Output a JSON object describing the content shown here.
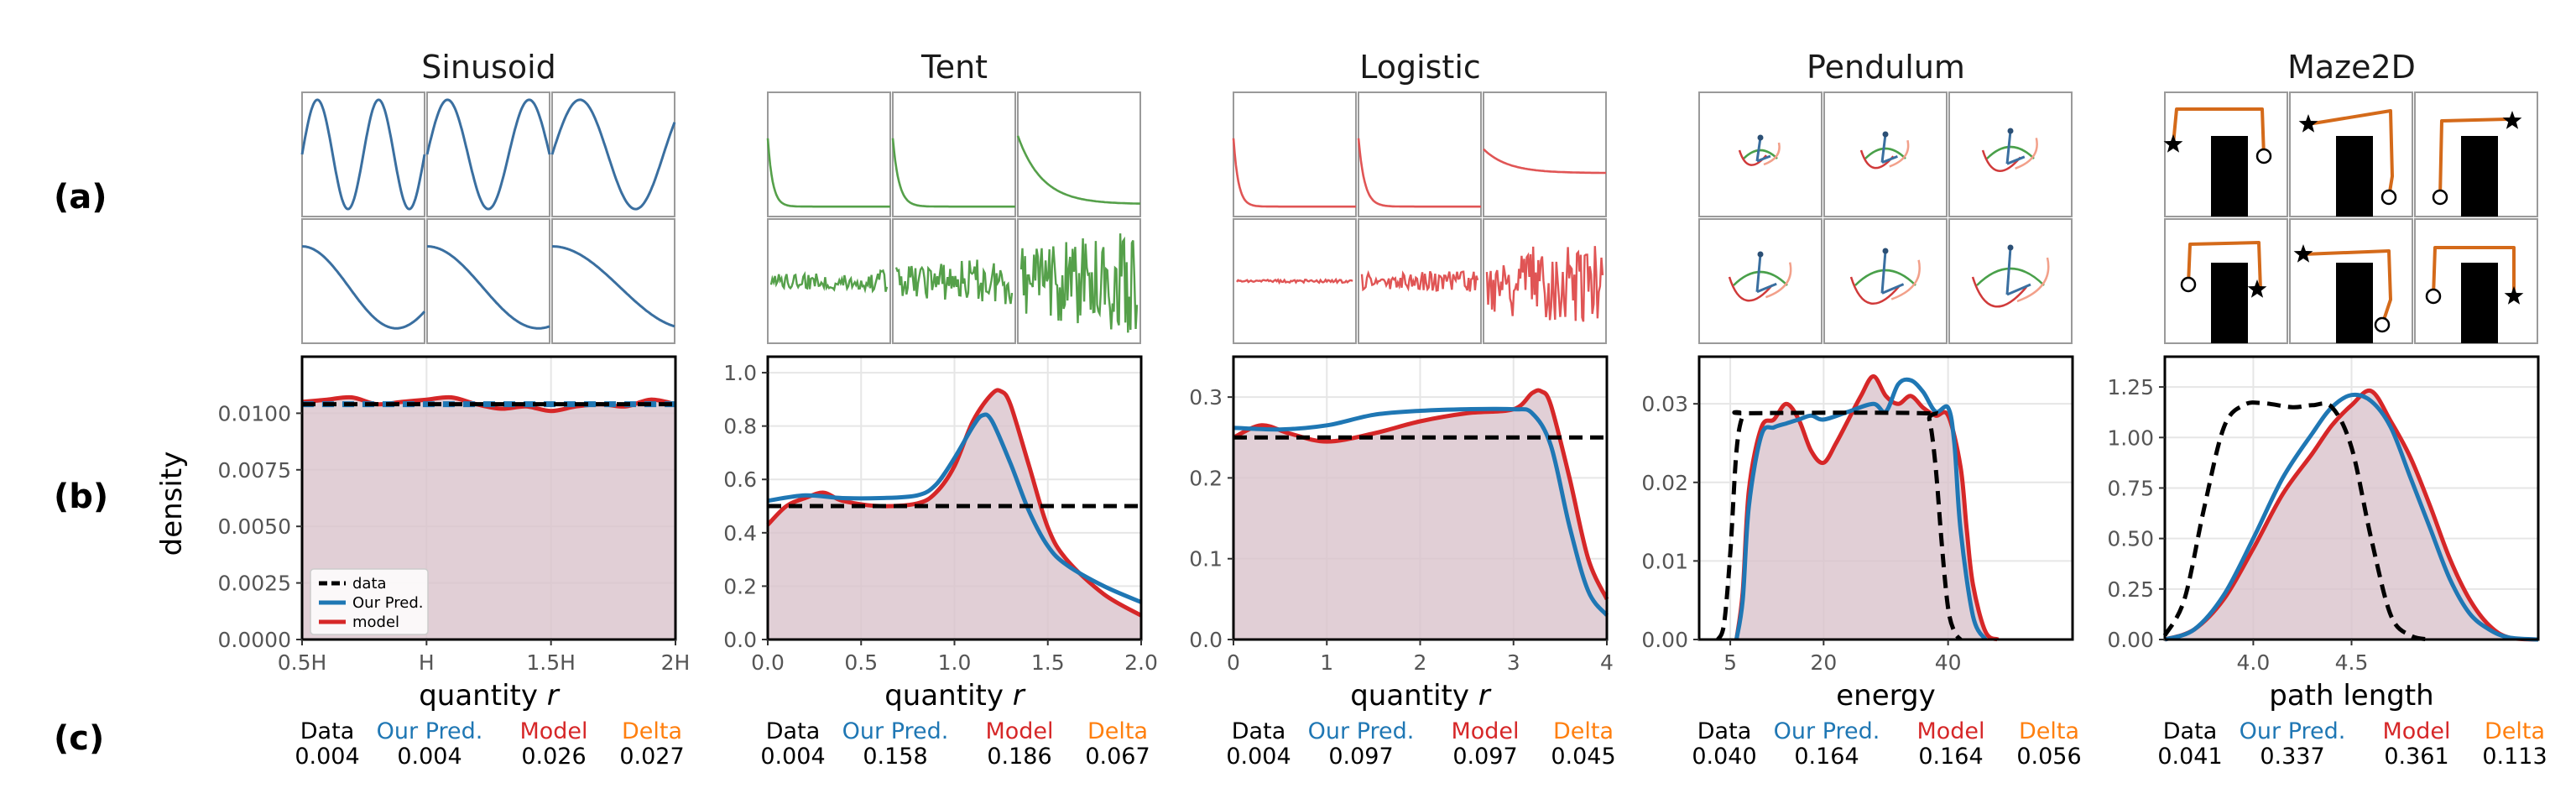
{
  "row_labels": [
    "(a)",
    "(b)",
    "(c)"
  ],
  "ylabel": "density",
  "colors": {
    "data": "#000000",
    "pred": "#1f77b4",
    "model": "#d62728",
    "delta": "#ff7f0e",
    "fill": "#d9c3cc",
    "sin_line": "#3a6fa0",
    "tent_line": "#55a04a",
    "logistic_line": "#e05555",
    "maze_path": "#d46a1a"
  },
  "legend": {
    "items": [
      "data",
      "Our Pred.",
      "model"
    ]
  },
  "stat_labels": [
    "Data",
    "Our Pred.",
    "Model",
    "Delta"
  ],
  "chart_data": [
    {
      "title": "Sinusoid",
      "type": "area",
      "xlabel": "quantity r",
      "xlim": [
        0.5,
        2.0
      ],
      "ylim": [
        0,
        0.0125
      ],
      "xticks": [
        0.5,
        1.0,
        1.5,
        2.0
      ],
      "xticklabels": [
        "0.5H",
        "H",
        "1.5H",
        "2H"
      ],
      "yticks": [
        0,
        0.0025,
        0.005,
        0.0075,
        0.01
      ],
      "yticklabels": [
        "0.0000",
        "0.0025",
        "0.0050",
        "0.0075",
        "0.0100"
      ],
      "series": [
        {
          "name": "data",
          "x": [
            0.5,
            2.0
          ],
          "y": [
            0.0104,
            0.0104
          ]
        },
        {
          "name": "Our Pred.",
          "x": [
            0.5,
            2.0
          ],
          "y": [
            0.0104,
            0.0104
          ]
        },
        {
          "name": "model",
          "x": [
            0.5,
            0.6,
            0.7,
            0.8,
            0.9,
            1.0,
            1.1,
            1.2,
            1.3,
            1.4,
            1.5,
            1.6,
            1.7,
            1.8,
            1.9,
            2.0
          ],
          "y": [
            0.0105,
            0.0106,
            0.0107,
            0.0104,
            0.0105,
            0.0106,
            0.0107,
            0.0104,
            0.0102,
            0.0103,
            0.0101,
            0.0103,
            0.0104,
            0.0103,
            0.0106,
            0.0104
          ]
        }
      ],
      "stats": [
        "0.004",
        "0.004",
        "0.026",
        "0.027"
      ]
    },
    {
      "title": "Tent",
      "type": "area",
      "xlabel": "quantity r",
      "xlim": [
        0,
        2.0
      ],
      "ylim": [
        0,
        1.06
      ],
      "xticks": [
        0,
        0.5,
        1.0,
        1.5,
        2.0
      ],
      "xticklabels": [
        "0.0",
        "0.5",
        "1.0",
        "1.5",
        "2.0"
      ],
      "yticks": [
        0,
        0.2,
        0.4,
        0.6,
        0.8,
        1.0
      ],
      "yticklabels": [
        "0.0",
        "0.2",
        "0.4",
        "0.6",
        "0.8",
        "1.0"
      ],
      "series": [
        {
          "name": "data",
          "x": [
            0,
            2.0
          ],
          "y": [
            0.5,
            0.5
          ]
        },
        {
          "name": "Our Pred.",
          "x": [
            0,
            0.2,
            0.4,
            0.6,
            0.8,
            0.9,
            1.0,
            1.1,
            1.15,
            1.2,
            1.3,
            1.4,
            1.5,
            1.6,
            1.8,
            2.0
          ],
          "y": [
            0.52,
            0.54,
            0.53,
            0.53,
            0.54,
            0.58,
            0.68,
            0.8,
            0.84,
            0.82,
            0.66,
            0.48,
            0.35,
            0.28,
            0.2,
            0.14
          ]
        },
        {
          "name": "model",
          "x": [
            0,
            0.1,
            0.2,
            0.3,
            0.4,
            0.6,
            0.8,
            0.9,
            1.0,
            1.1,
            1.2,
            1.25,
            1.3,
            1.4,
            1.5,
            1.6,
            1.8,
            2.0
          ],
          "y": [
            0.43,
            0.5,
            0.53,
            0.55,
            0.52,
            0.5,
            0.51,
            0.55,
            0.65,
            0.82,
            0.92,
            0.93,
            0.88,
            0.65,
            0.42,
            0.3,
            0.17,
            0.09
          ]
        }
      ],
      "stats": [
        "0.004",
        "0.158",
        "0.186",
        "0.067"
      ]
    },
    {
      "title": "Logistic",
      "type": "area",
      "xlabel": "quantity r",
      "xlim": [
        0,
        4
      ],
      "ylim": [
        0,
        0.35
      ],
      "xticks": [
        0,
        1,
        2,
        3,
        4
      ],
      "xticklabels": [
        "0",
        "1",
        "2",
        "3",
        "4"
      ],
      "yticks": [
        0,
        0.1,
        0.2,
        0.3
      ],
      "yticklabels": [
        "0.0",
        "0.1",
        "0.2",
        "0.3"
      ],
      "series": [
        {
          "name": "data",
          "x": [
            0,
            4
          ],
          "y": [
            0.25,
            0.25
          ]
        },
        {
          "name": "Our Pred.",
          "x": [
            0,
            0.5,
            1.0,
            1.5,
            2.0,
            2.5,
            3.0,
            3.2,
            3.4,
            3.6,
            3.8,
            4.0
          ],
          "y": [
            0.262,
            0.26,
            0.265,
            0.278,
            0.283,
            0.285,
            0.285,
            0.28,
            0.24,
            0.14,
            0.06,
            0.03
          ]
        },
        {
          "name": "model",
          "x": [
            0,
            0.3,
            0.6,
            1.0,
            1.5,
            2.0,
            2.5,
            3.0,
            3.2,
            3.3,
            3.4,
            3.6,
            3.8,
            4.0
          ],
          "y": [
            0.25,
            0.265,
            0.255,
            0.245,
            0.255,
            0.27,
            0.28,
            0.285,
            0.305,
            0.307,
            0.29,
            0.2,
            0.1,
            0.05
          ]
        }
      ],
      "stats": [
        "0.004",
        "0.097",
        "0.097",
        "0.045"
      ]
    },
    {
      "title": "Pendulum",
      "type": "area",
      "xlabel": "energy",
      "xlim": [
        0,
        60
      ],
      "ylim": [
        0,
        0.036
      ],
      "xticks": [
        5,
        20,
        40
      ],
      "xticklabels": [
        "5",
        "20",
        "40"
      ],
      "yticks": [
        0,
        0.01,
        0.02,
        0.03
      ],
      "yticklabels": [
        "0.00",
        "0.01",
        "0.02",
        "0.03"
      ],
      "series": [
        {
          "name": "data",
          "x": [
            3,
            4,
            5,
            6,
            7,
            8,
            36,
            37,
            38,
            39,
            40,
            41,
            42
          ],
          "y": [
            0,
            0.002,
            0.011,
            0.024,
            0.0285,
            0.0288,
            0.0288,
            0.028,
            0.022,
            0.012,
            0.004,
            0.001,
            0
          ]
        },
        {
          "name": "Our Pred.",
          "x": [
            6,
            7,
            8,
            10,
            12,
            14,
            16,
            18,
            20,
            24,
            28,
            30,
            32,
            34,
            36,
            38,
            40,
            41,
            42,
            44,
            46
          ],
          "y": [
            0,
            0.005,
            0.017,
            0.026,
            0.027,
            0.0275,
            0.028,
            0.0285,
            0.028,
            0.029,
            0.03,
            0.029,
            0.0325,
            0.033,
            0.0315,
            0.029,
            0.0295,
            0.025,
            0.014,
            0.003,
            0
          ]
        },
        {
          "name": "model",
          "x": [
            6,
            7,
            8,
            10,
            12,
            14,
            16,
            18,
            20,
            22,
            24,
            26,
            28,
            30,
            32,
            34,
            36,
            38,
            40,
            42,
            43,
            44,
            46,
            48
          ],
          "y": [
            0,
            0.006,
            0.019,
            0.027,
            0.028,
            0.03,
            0.028,
            0.024,
            0.0225,
            0.025,
            0.028,
            0.031,
            0.0335,
            0.031,
            0.03,
            0.031,
            0.0295,
            0.0285,
            0.0285,
            0.022,
            0.014,
            0.007,
            0.001,
            0
          ]
        }
      ],
      "stats": [
        "0.040",
        "0.164",
        "0.164",
        "0.056"
      ]
    },
    {
      "title": "Maze2D",
      "type": "area",
      "xlabel": "path length",
      "xlim": [
        3.55,
        5.45
      ],
      "ylim": [
        0,
        1.4
      ],
      "xticks": [
        4.0,
        4.5
      ],
      "xticklabels": [
        "4.0",
        "4.5"
      ],
      "yticks": [
        0,
        0.25,
        0.5,
        0.75,
        1.0,
        1.25
      ],
      "yticklabels": [
        "0.00",
        "0.25",
        "0.50",
        "0.75",
        "1.00",
        "1.25"
      ],
      "series": [
        {
          "name": "data",
          "x": [
            3.55,
            3.65,
            3.75,
            3.85,
            3.95,
            4.05,
            4.2,
            4.3,
            4.4,
            4.5,
            4.6,
            4.7,
            4.8,
            4.9
          ],
          "y": [
            0.02,
            0.2,
            0.65,
            1.05,
            1.16,
            1.17,
            1.15,
            1.16,
            1.15,
            0.95,
            0.5,
            0.12,
            0.02,
            0
          ]
        },
        {
          "name": "Our Pred.",
          "x": [
            3.55,
            3.7,
            3.85,
            4.0,
            4.15,
            4.3,
            4.4,
            4.5,
            4.6,
            4.7,
            4.8,
            4.9,
            5.0,
            5.1,
            5.2,
            5.3,
            5.45
          ],
          "y": [
            0,
            0.05,
            0.22,
            0.5,
            0.8,
            1.02,
            1.15,
            1.21,
            1.18,
            1.05,
            0.8,
            0.55,
            0.3,
            0.13,
            0.05,
            0.01,
            0
          ]
        },
        {
          "name": "model",
          "x": [
            3.55,
            3.7,
            3.85,
            4.0,
            4.15,
            4.3,
            4.4,
            4.5,
            4.6,
            4.7,
            4.8,
            4.9,
            5.0,
            5.1,
            5.2,
            5.3,
            5.45
          ],
          "y": [
            0,
            0.05,
            0.2,
            0.45,
            0.72,
            0.92,
            1.06,
            1.16,
            1.23,
            1.08,
            0.9,
            0.66,
            0.4,
            0.2,
            0.07,
            0.01,
            0
          ]
        }
      ],
      "stats": [
        "0.041",
        "0.337",
        "0.361",
        "0.113"
      ]
    }
  ]
}
